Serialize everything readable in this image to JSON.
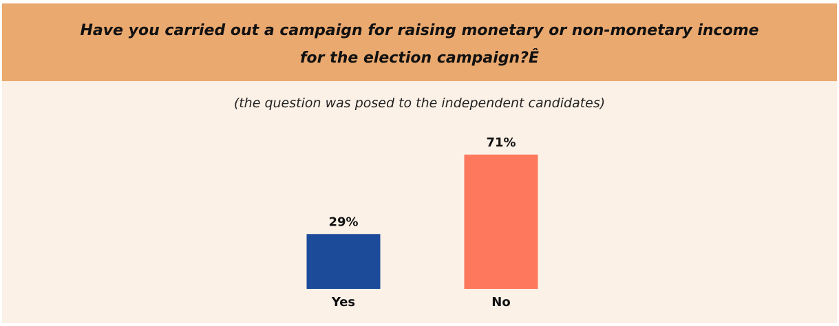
{
  "chart_data": {
    "type": "bar",
    "title_lines": [
      "Have you carried out a campaign for raising monetary or non-monetary income",
      "for the election campaign?Ê"
    ],
    "subtitle": "(the question was posed to the independent candidates)",
    "categories": [
      "Yes",
      "No"
    ],
    "values": [
      29,
      71
    ],
    "value_labels": [
      "29%",
      "71%"
    ],
    "colors": [
      "#1c4b9a",
      "#fe785d"
    ],
    "ylim": [
      0,
      100
    ],
    "grid": false,
    "xlabel": "",
    "ylabel": ""
  },
  "colors": {
    "header_bg": "#eaa96f",
    "panel_bg": "#fcf1e7"
  }
}
